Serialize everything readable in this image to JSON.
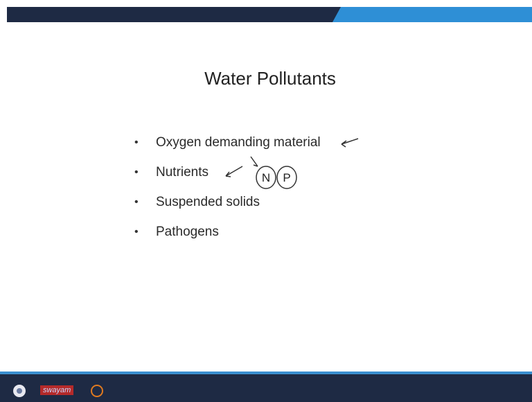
{
  "title": "Water Pollutants",
  "bullets": [
    "Oxygen demanding material",
    "Nutrients",
    "Suspended solids",
    "Pathogens"
  ],
  "annotations": [
    "N",
    "P"
  ],
  "footer": {
    "logo_text": "swayam"
  }
}
